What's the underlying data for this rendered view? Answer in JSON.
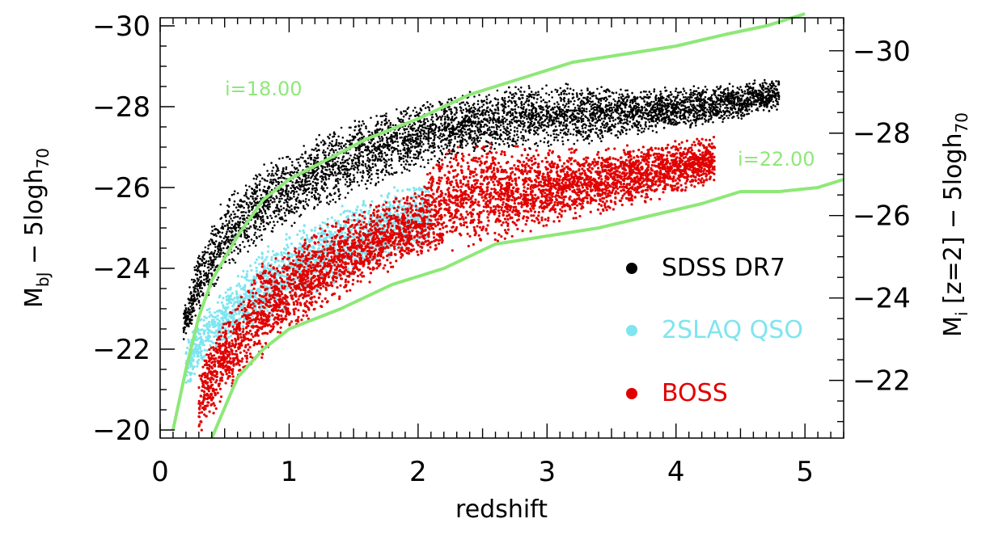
{
  "chart_data": {
    "type": "scatter",
    "xlabel": "redshift",
    "ylabel_left": {
      "main": "M",
      "sub": "bJ",
      "rest": " −  5logh",
      "sub2": "70"
    },
    "ylabel_right": {
      "main": "M",
      "sub": "i",
      "rest": " [z=2]  −  5logh",
      "sub2": "70"
    },
    "xlim": [
      0,
      5.3
    ],
    "ylim_left": [
      -19.8,
      -30.2
    ],
    "ylim_right": [
      -20.6,
      -30.8
    ],
    "x_ticks": [
      {
        "value": 0,
        "label": "0"
      },
      {
        "value": 1,
        "label": "1"
      },
      {
        "value": 2,
        "label": "2"
      },
      {
        "value": 3,
        "label": "3"
      },
      {
        "value": 4,
        "label": "4"
      },
      {
        "value": 5,
        "label": "5"
      }
    ],
    "y_ticks_left": [
      {
        "value": -20,
        "label": "−20"
      },
      {
        "value": -22,
        "label": "−22"
      },
      {
        "value": -24,
        "label": "−24"
      },
      {
        "value": -26,
        "label": "−26"
      },
      {
        "value": -28,
        "label": "−28"
      },
      {
        "value": -30,
        "label": "−30"
      }
    ],
    "y_ticks_right": [
      {
        "value": -22,
        "label": "−22"
      },
      {
        "value": -24,
        "label": "−24"
      },
      {
        "value": -26,
        "label": "−26"
      },
      {
        "value": -28,
        "label": "−28"
      },
      {
        "value": -30,
        "label": "−30"
      }
    ],
    "series": [
      {
        "name": "SDSS DR7",
        "color": "#000000",
        "envelope": [
          [
            0.18,
            -22.2,
            -23.0
          ],
          [
            0.3,
            -22.8,
            -24.5
          ],
          [
            0.5,
            -23.8,
            -25.8
          ],
          [
            0.8,
            -24.6,
            -26.6
          ],
          [
            1.2,
            -25.3,
            -27.3
          ],
          [
            1.6,
            -25.9,
            -27.8
          ],
          [
            2.0,
            -26.4,
            -28.2
          ],
          [
            2.4,
            -26.8,
            -28.4
          ],
          [
            2.8,
            -26.9,
            -28.6
          ],
          [
            3.2,
            -27.0,
            -28.6
          ],
          [
            3.6,
            -27.2,
            -28.5
          ],
          [
            4.0,
            -27.4,
            -28.5
          ],
          [
            4.4,
            -27.6,
            -28.6
          ],
          [
            4.8,
            -27.9,
            -28.7
          ]
        ],
        "count": 5200
      },
      {
        "name": "2SLAQ QSO",
        "color": "#7fe5f0",
        "envelope": [
          [
            0.2,
            -21.0,
            -22.3
          ],
          [
            0.4,
            -21.8,
            -23.2
          ],
          [
            0.7,
            -22.4,
            -24.2
          ],
          [
            1.0,
            -23.0,
            -25.0
          ],
          [
            1.4,
            -23.6,
            -25.6
          ],
          [
            1.8,
            -24.2,
            -26.0
          ],
          [
            2.1,
            -24.5,
            -26.3
          ]
        ],
        "count": 1800
      },
      {
        "name": "BOSS",
        "color": "#e00000",
        "envelope": [
          [
            0.3,
            -19.8,
            -21.6
          ],
          [
            0.5,
            -20.8,
            -22.8
          ],
          [
            0.8,
            -21.8,
            -24.2
          ],
          [
            1.2,
            -22.8,
            -25.0
          ],
          [
            1.6,
            -23.6,
            -25.6
          ],
          [
            2.0,
            -24.2,
            -26.0
          ],
          [
            2.2,
            -24.3,
            -27.1
          ],
          [
            2.6,
            -24.6,
            -27.2
          ],
          [
            3.0,
            -25.0,
            -27.0
          ],
          [
            3.5,
            -25.4,
            -27.0
          ],
          [
            4.0,
            -25.8,
            -27.2
          ],
          [
            4.3,
            -26.1,
            -27.3
          ]
        ],
        "count": 4800
      }
    ],
    "curves": [
      {
        "label": "i=18.00",
        "color": "#8ee878",
        "points": [
          [
            0.1,
            -20.0
          ],
          [
            0.2,
            -21.5
          ],
          [
            0.3,
            -22.8
          ],
          [
            0.4,
            -23.7
          ],
          [
            0.6,
            -24.8
          ],
          [
            0.8,
            -25.7
          ],
          [
            1.0,
            -26.2
          ],
          [
            1.3,
            -26.7
          ],
          [
            1.6,
            -27.2
          ],
          [
            2.0,
            -27.7
          ],
          [
            2.4,
            -28.3
          ],
          [
            2.8,
            -28.7
          ],
          [
            3.2,
            -29.1
          ],
          [
            3.6,
            -29.3
          ],
          [
            4.0,
            -29.5
          ],
          [
            4.4,
            -29.8
          ],
          [
            4.7,
            -30.0
          ],
          [
            5.0,
            -30.3
          ]
        ]
      },
      {
        "label": "i=22.00",
        "color": "#8ee878",
        "points": [
          [
            0.4,
            -19.8
          ],
          [
            0.6,
            -21.3
          ],
          [
            0.8,
            -22.0
          ],
          [
            1.0,
            -22.5
          ],
          [
            1.4,
            -23.0
          ],
          [
            1.8,
            -23.6
          ],
          [
            2.2,
            -24.0
          ],
          [
            2.6,
            -24.6
          ],
          [
            3.0,
            -24.8
          ],
          [
            3.4,
            -25.0
          ],
          [
            3.8,
            -25.3
          ],
          [
            4.2,
            -25.6
          ],
          [
            4.5,
            -25.9
          ],
          [
            4.8,
            -25.9
          ],
          [
            5.1,
            -26.0
          ],
          [
            5.3,
            -26.2
          ]
        ]
      }
    ],
    "legend": [
      {
        "label": "SDSS DR7",
        "color": "#000000"
      },
      {
        "label": "2SLAQ QSO",
        "color": "#7fe5f0"
      },
      {
        "label": "BOSS",
        "color": "#e00000"
      }
    ]
  }
}
